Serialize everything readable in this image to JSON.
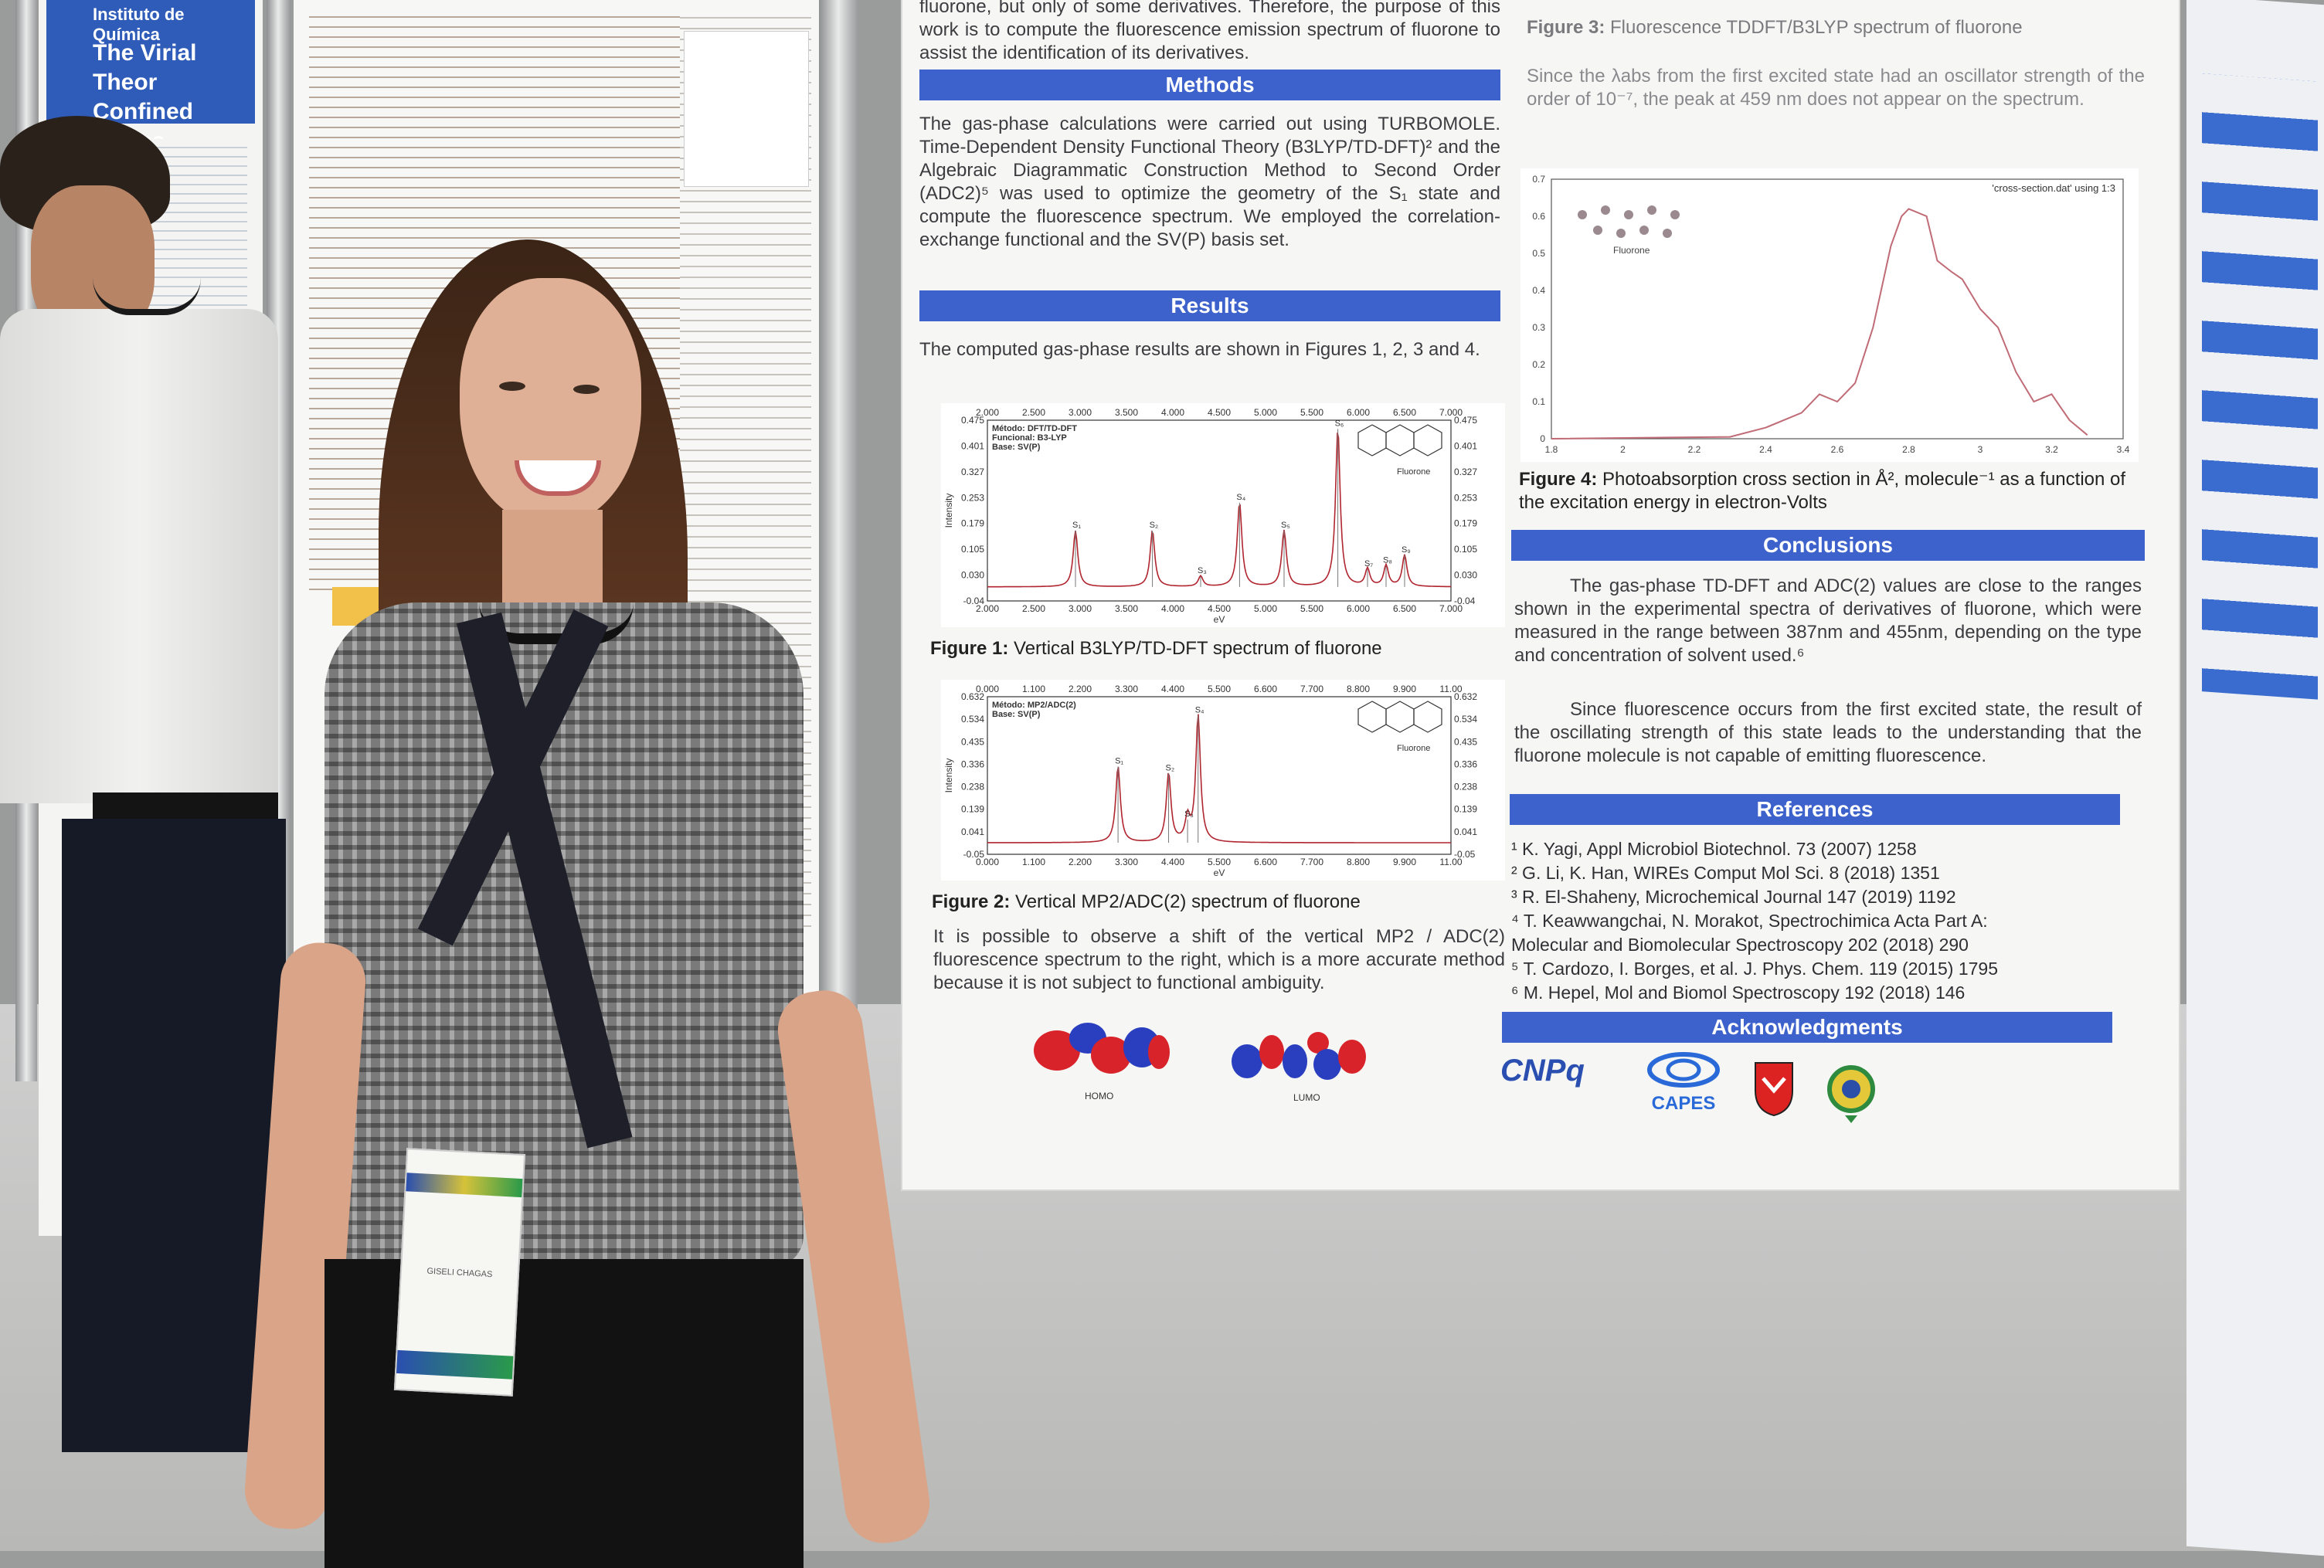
{
  "poster": {
    "intro_tail": "fluorone, but only of some derivatives. Therefore, the purpose of this work is to compute the fluorescence emission spectrum of fluorone to assist the identification of its derivatives.",
    "methods_title": "Methods",
    "methods_text": "The gas-phase calculations were carried out using TURBOMOLE. Time-Dependent Density Functional Theory (B3LYP/TD-DFT)² and the Algebraic Diagrammatic Construction Method to Second Order (ADC2)⁵ was used to optimize the geometry of the S₁ state and compute the fluorescence spectrum. We employed the correlation-exchange functional and the SV(P) basis set.",
    "results_title": "Results",
    "results_text": "The computed gas-phase results are shown in Figures 1, 2, 3 and 4.",
    "fig1_caption_bold": "Figure 1:",
    "fig1_caption": "Vertical B3LYP/TD-DFT spectrum of fluorone",
    "fig2_caption_bold": "Figure 2:",
    "fig2_caption": "Vertical MP2/ADC(2) spectrum of fluorone",
    "results_text2": "It is possible to observe a shift of the vertical MP2 / ADC(2) fluorescence spectrum to the right, which is a more accurate method because it is not subject to functional ambiguity.",
    "homo_label": "HOMO",
    "lumo_label": "LUMO",
    "fig3_caption_bold": "Figure 3:",
    "fig3_caption": "Fluorescence TDDFT/B3LYP spectrum of fluorone",
    "fig3_text": "Since the λabs from the first excited state had an oscillator strength of the order of 10⁻⁷, the peak at 459 nm does not appear on the spectrum.",
    "fig4_caption_bold": "Figure 4:",
    "fig4_caption": "Photoabsorption cross section in Å², molecule⁻¹ as a function of the excitation energy in electron-Volts",
    "conclusions_title": "Conclusions",
    "conclusions_text1": "The gas-phase TD-DFT and ADC(2) values are close to the ranges shown in the experimental spectra of derivatives of fluorone, which were measured in the range between 387nm and 455nm, depending on the type and concentration of solvent used.⁶",
    "conclusions_text2": "Since fluorescence occurs from the first excited state, the result of the oscillating strength of this state leads to the understanding that the fluorone molecule is not capable of emitting fluorescence.",
    "references_title": "References",
    "references": [
      "¹ K. Yagi, Appl Microbiol Biotechnol. 73 (2007) 1258",
      "² G. Li, K. Han, WIREs Comput Mol Sci. 8 (2018) 1351",
      "³ R. El-Shaheny, Microchemical Journal 147 (2019) 1192",
      "⁴ T. Keawwangchai, N. Morakot, Spectrochimica Acta Part A: Molecular and Biomolecular Spectroscopy 202 (2018) 290",
      "⁵ T. Cardozo, I. Borges, et al. J. Phys. Chem. 119 (2015) 1795",
      "⁶ M. Hepel, Mol and Biomol Spectroscopy 192 (2018) 146"
    ],
    "acknowledgments_title": "Acknowledgments",
    "logos": [
      "CNPq",
      "CAPES"
    ]
  },
  "fig1": {
    "top_ticks": [
      "2.000",
      "2.500",
      "3.000",
      "3.500",
      "4.000",
      "4.500",
      "5.000",
      "5.500",
      "6.000",
      "6.500",
      "7.000"
    ],
    "y_ticks": [
      "0.475",
      "0.401",
      "0.327",
      "0.253",
      "0.179",
      "0.105",
      "0.030",
      "-0.04"
    ],
    "xlabel": "eV",
    "ylabel": "Intensity",
    "legend": [
      "Método: DFT/TD-DFT",
      "Funcional: B3-LYP",
      "Base: SV(P)"
    ],
    "molecule_label": "Fluorone",
    "state_labels": [
      "S₁",
      "S₂",
      "S₃",
      "S₄",
      "S₅",
      "S₆",
      "S₇",
      "S₈",
      "S₉"
    ]
  },
  "fig2": {
    "top_ticks": [
      "0.000",
      "1.100",
      "2.200",
      "3.300",
      "4.400",
      "5.500",
      "6.600",
      "7.700",
      "8.800",
      "9.900",
      "11.00"
    ],
    "y_ticks": [
      "0.632",
      "0.534",
      "0.435",
      "0.336",
      "0.238",
      "0.139",
      "0.041",
      "-0.05"
    ],
    "xlabel": "eV",
    "ylabel": "Intensity",
    "legend": [
      "Método: MP2/ADC(2)",
      "Base: SV(P)"
    ],
    "molecule_label": "Fluorone",
    "state_labels": [
      "S₁",
      "S₂",
      "S₃",
      "S₄"
    ]
  },
  "fig3": {
    "x_ticks": [
      "1.8",
      "2",
      "2.2",
      "2.4",
      "2.6",
      "2.8",
      "3",
      "3.2",
      "3.4"
    ],
    "y_ticks": [
      "0.7",
      "0.6",
      "0.5",
      "0.4",
      "0.3",
      "0.2",
      "0.1",
      "0"
    ],
    "series_label": "'cross-section.dat' using 1:3",
    "molecule_label": "Fluorone"
  },
  "left_poster": {
    "institution": "Instituto de Química",
    "title": "The Virial Theor Confined Atoms"
  },
  "badge": {
    "name": "GISELI CHAGAS"
  },
  "chart_data": [
    {
      "type": "line",
      "title": "Vertical B3LYP/TD-DFT spectrum of fluorone",
      "xlabel": "eV",
      "ylabel": "Intensity",
      "xlim": [
        2.0,
        7.0
      ],
      "ylim": [
        -0.04,
        0.475
      ],
      "peaks": [
        {
          "x": 2.95,
          "y": 0.16
        },
        {
          "x": 3.78,
          "y": 0.16
        },
        {
          "x": 4.3,
          "y": 0.03
        },
        {
          "x": 4.72,
          "y": 0.24
        },
        {
          "x": 5.2,
          "y": 0.16
        },
        {
          "x": 5.78,
          "y": 0.45
        },
        {
          "x": 6.1,
          "y": 0.05
        },
        {
          "x": 6.3,
          "y": 0.06
        },
        {
          "x": 6.5,
          "y": 0.09
        }
      ]
    },
    {
      "type": "line",
      "title": "Vertical MP2/ADC(2) spectrum of fluorone",
      "xlabel": "eV",
      "ylabel": "Intensity",
      "xlim": [
        0.0,
        11.0
      ],
      "ylim": [
        -0.05,
        0.632
      ],
      "peaks": [
        {
          "x": 3.1,
          "y": 0.33
        },
        {
          "x": 4.3,
          "y": 0.3
        },
        {
          "x": 4.75,
          "y": 0.1
        },
        {
          "x": 5.0,
          "y": 0.55
        }
      ]
    },
    {
      "type": "line",
      "title": "Fluorescence TDDFT/B3LYP spectrum of fluorone",
      "series_name": "'cross-section.dat' using 1:3",
      "xlim": [
        1.8,
        3.4
      ],
      "ylim": [
        0,
        0.7
      ],
      "x": [
        1.8,
        2.3,
        2.4,
        2.5,
        2.55,
        2.6,
        2.65,
        2.7,
        2.75,
        2.78,
        2.8,
        2.85,
        2.88,
        2.92,
        2.95,
        3.0,
        3.05,
        3.1,
        3.15,
        3.2,
        3.25,
        3.3
      ],
      "y": [
        0,
        0.005,
        0.03,
        0.07,
        0.12,
        0.1,
        0.15,
        0.3,
        0.52,
        0.6,
        0.62,
        0.6,
        0.48,
        0.45,
        0.43,
        0.35,
        0.3,
        0.18,
        0.1,
        0.12,
        0.05,
        0.01
      ]
    }
  ]
}
